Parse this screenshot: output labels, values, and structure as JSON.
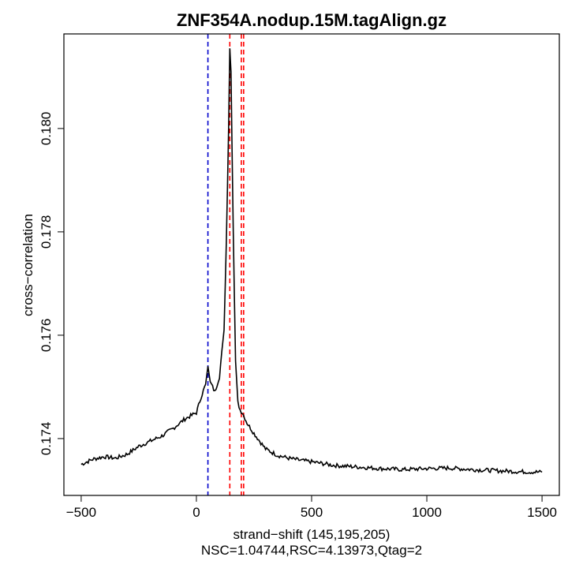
{
  "chart_data": {
    "type": "line",
    "title": "ZNF354A.nodup.15M.tagAlign.gz",
    "xlabel": "strand−shift (145,195,205)",
    "sublabel": "NSC=1.04744,RSC=4.13973,Qtag=2",
    "ylabel": "cross−correlation",
    "xlim": [
      -575,
      1575
    ],
    "ylim": [
      0.1729,
      0.18183
    ],
    "x_ticks": [
      -500,
      0,
      500,
      1000,
      1500
    ],
    "x_tick_labels": [
      "−500",
      "0",
      "500",
      "1000",
      "1500"
    ],
    "y_ticks": [
      0.174,
      0.176,
      0.178,
      0.18
    ],
    "y_tick_labels": [
      "0.174",
      "0.176",
      "0.178",
      "0.180"
    ],
    "series": [
      {
        "color": "#000000",
        "x": [
          -500,
          -450,
          -400,
          -350,
          -300,
          -250,
          -200,
          -150,
          -100,
          -50,
          0,
          20,
          40,
          50,
          60,
          80,
          100,
          120,
          130,
          140,
          145,
          150,
          160,
          170,
          180,
          190,
          200,
          220,
          250,
          300,
          350,
          400,
          450,
          500,
          600,
          700,
          800,
          900,
          1000,
          1100,
          1200,
          1300,
          1400,
          1500
        ],
        "y": [
          0.1735,
          0.1736,
          0.17365,
          0.17362,
          0.1737,
          0.17385,
          0.17395,
          0.17405,
          0.1742,
          0.17438,
          0.1745,
          0.1748,
          0.17505,
          0.1754,
          0.1751,
          0.1749,
          0.1752,
          0.1761,
          0.1778,
          0.18,
          0.18155,
          0.1811,
          0.178,
          0.1755,
          0.1747,
          0.17455,
          0.1745,
          0.1743,
          0.1741,
          0.1738,
          0.17368,
          0.17362,
          0.17358,
          0.17355,
          0.17348,
          0.17345,
          0.17342,
          0.1734,
          0.17342,
          0.17343,
          0.1734,
          0.17338,
          0.17336,
          0.17335
        ]
      }
    ],
    "vlines": [
      {
        "x": 50,
        "color": "#0000cc",
        "style": "dashed"
      },
      {
        "x": 145,
        "color": "#ff0000",
        "style": "dashed"
      },
      {
        "x": 195,
        "color": "#ff0000",
        "style": "dashed"
      },
      {
        "x": 205,
        "color": "#ff0000",
        "style": "dashed"
      }
    ],
    "grid": false,
    "legend": "none"
  }
}
